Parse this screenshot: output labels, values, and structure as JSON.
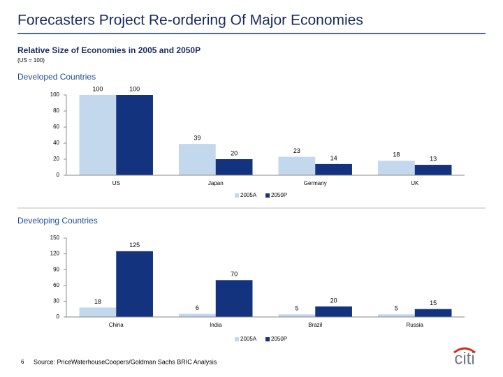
{
  "header": {
    "title": "Forecasters Project Re-ordering Of Major Economies",
    "subtitle": "Relative Size of Economies in 2005 and 2050P",
    "note": "(US = 100)"
  },
  "chart_data": [
    {
      "type": "bar",
      "title": "Developed Countries",
      "categories": [
        "US",
        "Japan",
        "Germany",
        "UK"
      ],
      "series": [
        {
          "name": "2005A",
          "color": "#c3d8ec",
          "values": [
            100,
            39,
            23,
            18
          ]
        },
        {
          "name": "2050P",
          "color": "#14337f",
          "values": [
            100,
            20,
            14,
            13
          ]
        }
      ],
      "ylim": [
        0,
        100
      ],
      "yticks": [
        0,
        20,
        40,
        60,
        80,
        100
      ],
      "legend": "bottom"
    },
    {
      "type": "bar",
      "title": "Developing Countries",
      "categories": [
        "China",
        "India",
        "Brazil",
        "Russia"
      ],
      "series": [
        {
          "name": "2005A",
          "color": "#c3d8ec",
          "values": [
            18,
            6,
            5,
            5
          ]
        },
        {
          "name": "2050P",
          "color": "#14337f",
          "values": [
            125,
            70,
            20,
            15
          ]
        }
      ],
      "ylim": [
        0,
        150
      ],
      "yticks": [
        0,
        30,
        60,
        90,
        120,
        150
      ],
      "legend": "bottom"
    }
  ],
  "footer": {
    "page": "6",
    "source": "Source:  PriceWaterhouseCoopers/Goldman Sachs BRIC Analysis",
    "logo": "citi"
  }
}
